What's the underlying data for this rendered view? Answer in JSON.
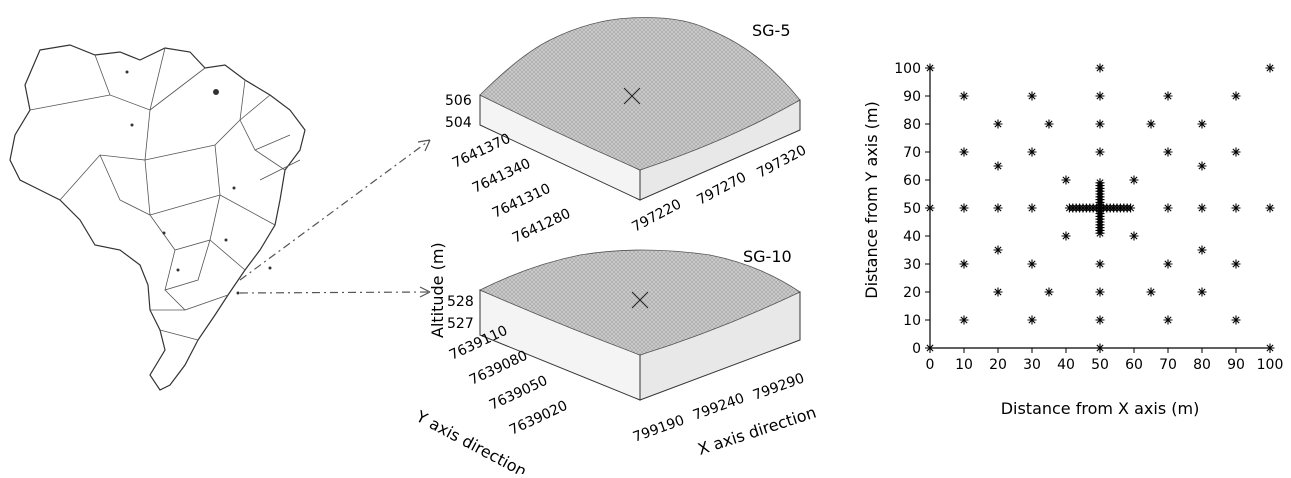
{
  "figure": {
    "map_panel": {
      "country": "Brazil"
    },
    "surface_panels": [
      {
        "title": "SG-5",
        "z_ticks": [
          "506",
          "504"
        ],
        "y_ticks": [
          "7641370",
          "7641340",
          "7641310",
          "7641280"
        ],
        "x_ticks": [
          "797220",
          "797270",
          "797320"
        ]
      },
      {
        "title": "SG-10",
        "z_ticks": [
          "528",
          "527"
        ],
        "y_ticks": [
          "7639110",
          "7639080",
          "7639050",
          "7639020"
        ],
        "x_ticks": [
          "799190",
          "799240",
          "799290"
        ],
        "zlabel": "Altitude (m)",
        "ylabel": "Y axis direction",
        "xlabel": "X axis direction"
      }
    ]
  },
  "chart_data": {
    "type": "scatter",
    "title": "",
    "xlabel": "Distance from X axis (m)",
    "ylabel": "Distance from Y axis (m)",
    "xlim": [
      0,
      100
    ],
    "ylim": [
      0,
      100
    ],
    "x_ticks": [
      0,
      10,
      20,
      30,
      40,
      50,
      60,
      70,
      80,
      90,
      100
    ],
    "y_ticks": [
      0,
      10,
      20,
      30,
      40,
      50,
      60,
      70,
      80,
      90,
      100
    ],
    "grid": false,
    "marker": "asterisk",
    "points": [
      [
        0,
        0
      ],
      [
        50,
        0
      ],
      [
        100,
        0
      ],
      [
        0,
        50
      ],
      [
        100,
        50
      ],
      [
        0,
        100
      ],
      [
        50,
        100
      ],
      [
        100,
        100
      ],
      [
        10,
        10
      ],
      [
        30,
        10
      ],
      [
        70,
        10
      ],
      [
        90,
        10
      ],
      [
        10,
        30
      ],
      [
        30,
        30
      ],
      [
        70,
        30
      ],
      [
        90,
        30
      ],
      [
        10,
        70
      ],
      [
        30,
        70
      ],
      [
        70,
        70
      ],
      [
        90,
        70
      ],
      [
        10,
        90
      ],
      [
        30,
        90
      ],
      [
        70,
        90
      ],
      [
        90,
        90
      ],
      [
        20,
        20
      ],
      [
        35,
        20
      ],
      [
        65,
        20
      ],
      [
        80,
        20
      ],
      [
        20,
        35
      ],
      [
        80,
        35
      ],
      [
        20,
        65
      ],
      [
        80,
        65
      ],
      [
        20,
        80
      ],
      [
        35,
        80
      ],
      [
        65,
        80
      ],
      [
        80,
        80
      ],
      [
        40,
        40
      ],
      [
        60,
        40
      ],
      [
        40,
        60
      ],
      [
        60,
        60
      ],
      [
        10,
        50
      ],
      [
        20,
        50
      ],
      [
        30,
        50
      ],
      [
        70,
        50
      ],
      [
        80,
        50
      ],
      [
        90,
        50
      ],
      [
        50,
        10
      ],
      [
        50,
        20
      ],
      [
        50,
        30
      ],
      [
        50,
        70
      ],
      [
        50,
        80
      ],
      [
        50,
        90
      ],
      [
        41,
        50
      ],
      [
        42,
        50
      ],
      [
        43,
        50
      ],
      [
        44,
        50
      ],
      [
        45,
        50
      ],
      [
        46,
        50
      ],
      [
        47,
        50
      ],
      [
        48,
        50
      ],
      [
        49,
        50
      ],
      [
        50,
        50
      ],
      [
        51,
        50
      ],
      [
        52,
        50
      ],
      [
        53,
        50
      ],
      [
        54,
        50
      ],
      [
        55,
        50
      ],
      [
        56,
        50
      ],
      [
        57,
        50
      ],
      [
        58,
        50
      ],
      [
        59,
        50
      ],
      [
        50,
        41
      ],
      [
        50,
        42
      ],
      [
        50,
        43
      ],
      [
        50,
        44
      ],
      [
        50,
        45
      ],
      [
        50,
        46
      ],
      [
        50,
        47
      ],
      [
        50,
        48
      ],
      [
        50,
        49
      ],
      [
        50,
        51
      ],
      [
        50,
        52
      ],
      [
        50,
        53
      ],
      [
        50,
        54
      ],
      [
        50,
        55
      ],
      [
        50,
        56
      ],
      [
        50,
        57
      ],
      [
        50,
        58
      ],
      [
        50,
        59
      ]
    ]
  }
}
